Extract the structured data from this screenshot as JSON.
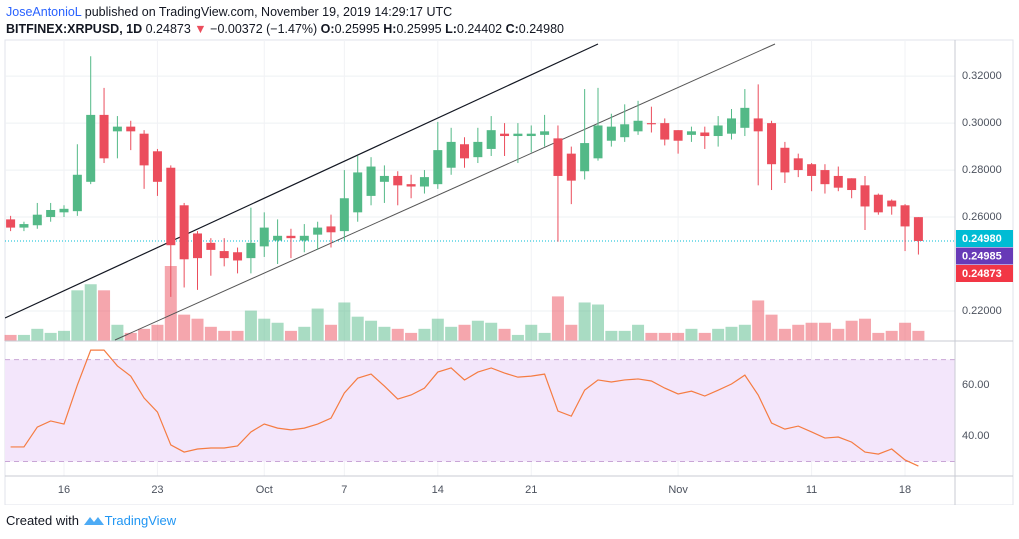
{
  "header": {
    "author": "JoseAntonioL",
    "published": "published on TradingView.com, November 19, 2019 14:29:17 UTC",
    "symbol": "BITFINEX:XRPUSD, 1D",
    "last": "0.24873",
    "arrow": "▼",
    "change": "−0.00372 (−1.47%)",
    "o_label": "O:",
    "o": "0.25995",
    "h_label": "H:",
    "h": "0.25995",
    "l_label": "L:",
    "l": "0.24402",
    "c_label": "C:",
    "c": "0.24980"
  },
  "footer": {
    "created": "Created with",
    "brand": "TradingView"
  },
  "chart_data": {
    "type": "candlestick",
    "categories": [
      null,
      null,
      null,
      null,
      "16",
      null,
      null,
      null,
      null,
      null,
      null,
      "23",
      null,
      null,
      null,
      null,
      null,
      null,
      null,
      "Oct",
      null,
      null,
      null,
      null,
      null,
      "7",
      null,
      null,
      null,
      null,
      null,
      null,
      "14",
      null,
      null,
      null,
      null,
      null,
      null,
      "21",
      null,
      null,
      null,
      null,
      null,
      null,
      null,
      null,
      null,
      null,
      "Nov",
      null,
      null,
      null,
      null,
      null,
      null,
      null,
      null,
      null,
      "11",
      null,
      null,
      null,
      null,
      null,
      null,
      "18",
      null
    ],
    "open": [
      0.259,
      0.2555,
      0.2565,
      0.26,
      0.262,
      0.2625,
      0.275,
      0.3035,
      0.2965,
      0.2985,
      0.2955,
      0.288,
      0.281,
      0.265,
      0.253,
      0.249,
      0.2455,
      0.245,
      0.2425,
      0.2475,
      0.25,
      0.252,
      0.25,
      0.2525,
      0.256,
      0.254,
      0.262,
      0.269,
      0.275,
      0.2775,
      0.274,
      0.273,
      0.274,
      0.281,
      0.291,
      0.2855,
      0.289,
      0.2955,
      0.2945,
      0.2945,
      0.295,
      0.2935,
      0.287,
      0.2795,
      0.285,
      0.2925,
      0.294,
      0.2965,
      0.3,
      0.3,
      0.297,
      0.295,
      0.296,
      0.2945,
      0.2955,
      0.298,
      0.302,
      0.3,
      0.2895,
      0.285,
      0.2825,
      0.28,
      0.2775,
      0.2765,
      0.2735,
      0.2695,
      0.267,
      0.265,
      0.25995
    ],
    "high": [
      0.2605,
      0.258,
      0.266,
      0.266,
      0.265,
      0.291,
      0.3285,
      0.315,
      0.303,
      0.301,
      0.297,
      0.289,
      0.282,
      0.266,
      0.254,
      0.251,
      0.251,
      0.247,
      0.264,
      0.262,
      0.259,
      0.255,
      0.257,
      0.258,
      0.261,
      0.28,
      0.286,
      0.2855,
      0.282,
      0.2795,
      0.278,
      0.28,
      0.3005,
      0.298,
      0.294,
      0.298,
      0.303,
      0.3,
      0.3,
      0.299,
      0.3035,
      0.299,
      0.29,
      0.3145,
      0.315,
      0.304,
      0.308,
      0.3095,
      0.307,
      0.302,
      0.297,
      0.2985,
      0.2985,
      0.303,
      0.306,
      0.3145,
      0.3165,
      0.301,
      0.292,
      0.287,
      0.283,
      0.2825,
      0.2815,
      0.2765,
      0.2775,
      0.27,
      0.2675,
      0.2655,
      0.25995
    ],
    "low": [
      0.254,
      0.254,
      0.255,
      0.258,
      0.26,
      0.2605,
      0.274,
      0.283,
      0.285,
      0.2885,
      0.272,
      0.269,
      0.226,
      0.23,
      0.229,
      0.235,
      0.239,
      0.236,
      0.236,
      0.243,
      0.24,
      0.2425,
      0.245,
      0.246,
      0.247,
      0.25,
      0.258,
      0.265,
      0.266,
      0.265,
      0.268,
      0.27,
      0.272,
      0.278,
      0.281,
      0.283,
      0.286,
      0.286,
      0.283,
      0.2875,
      0.29,
      0.2495,
      0.2655,
      0.276,
      0.284,
      0.29,
      0.292,
      0.295,
      0.296,
      0.2905,
      0.287,
      0.292,
      0.289,
      0.29,
      0.293,
      0.2945,
      0.2735,
      0.2715,
      0.2745,
      0.277,
      0.271,
      0.27,
      0.271,
      0.268,
      0.2545,
      0.261,
      0.261,
      0.2455,
      0.24402
    ],
    "close": [
      0.2555,
      0.257,
      0.261,
      0.263,
      0.2635,
      0.278,
      0.3035,
      0.285,
      0.2985,
      0.2965,
      0.282,
      0.275,
      0.248,
      0.242,
      0.2425,
      0.246,
      0.2425,
      0.2415,
      0.249,
      0.2555,
      0.252,
      0.251,
      0.252,
      0.2555,
      0.2535,
      0.268,
      0.279,
      0.2815,
      0.2775,
      0.2735,
      0.273,
      0.277,
      0.2885,
      0.292,
      0.285,
      0.292,
      0.297,
      0.2945,
      0.2955,
      0.2955,
      0.2965,
      0.2775,
      0.2755,
      0.2915,
      0.299,
      0.2985,
      0.2995,
      0.301,
      0.2995,
      0.293,
      0.2925,
      0.2965,
      0.2945,
      0.299,
      0.302,
      0.3065,
      0.2965,
      0.2825,
      0.279,
      0.28,
      0.2775,
      0.274,
      0.2725,
      0.2715,
      0.2645,
      0.262,
      0.2645,
      0.256,
      0.2498
    ],
    "volume": [
      6,
      6,
      12,
      8,
      10,
      50,
      56,
      50,
      16,
      8,
      12,
      16,
      74,
      26,
      22,
      14,
      10,
      10,
      30,
      22,
      18,
      10,
      14,
      32,
      16,
      38,
      24,
      20,
      14,
      12,
      8,
      12,
      22,
      14,
      16,
      20,
      18,
      12,
      6,
      16,
      8,
      44,
      16,
      38,
      36,
      10,
      10,
      16,
      8,
      8,
      8,
      12,
      8,
      12,
      14,
      16,
      40,
      26,
      12,
      16,
      18,
      18,
      12,
      20,
      22,
      8,
      10,
      18,
      10
    ],
    "rsi": [
      35.7,
      35.7,
      43.5,
      45.9,
      44.7,
      60,
      73.7,
      73.7,
      67.5,
      63.5,
      54.9,
      49.4,
      36.5,
      33.7,
      34.9,
      35.3,
      35.3,
      36.1,
      41.6,
      44.7,
      43.1,
      42.4,
      43.1,
      44.7,
      47,
      56.9,
      62.7,
      64.3,
      59.6,
      54.5,
      56.1,
      58.8,
      65.1,
      66.7,
      62,
      65.1,
      66.7,
      64.7,
      63.1,
      63.5,
      64.3,
      49.8,
      47.8,
      58,
      62,
      61.2,
      62,
      62.4,
      61.6,
      58.8,
      56.5,
      57.6,
      55.7,
      58,
      60.4,
      63.9,
      56.1,
      45.1,
      42.7,
      43.9,
      41.6,
      39.2,
      39.6,
      37.6,
      33.7,
      32.9,
      34.9,
      30.6,
      28.2
    ],
    "ylim": [
      0.2072,
      0.3354
    ],
    "yticks": [
      {
        "value": 0.22,
        "label": "0.22000"
      },
      {
        "value": 0.26,
        "label": "0.26000"
      },
      {
        "value": 0.28,
        "label": "0.28000"
      },
      {
        "value": 0.3,
        "label": "0.30000"
      },
      {
        "value": 0.32,
        "label": "0.32000"
      }
    ],
    "rsi_ylim": [
      24.3,
      76.9
    ],
    "rsi_yticks": [
      {
        "value": 40,
        "label": "40.00"
      },
      {
        "value": 60,
        "label": "60.00"
      }
    ],
    "rsi_bands": [
      30,
      70
    ],
    "price_labels": [
      "0.24980",
      "0.24985",
      "0.24873"
    ],
    "price_label_colors": [
      "#00bcd4",
      "#673ab7",
      "#f23645"
    ],
    "up_color": "#53b987",
    "down_color": "#eb4d5c",
    "rsi_color": "#f57c42",
    "band_color": "#f3e6fb",
    "grid": true
  }
}
